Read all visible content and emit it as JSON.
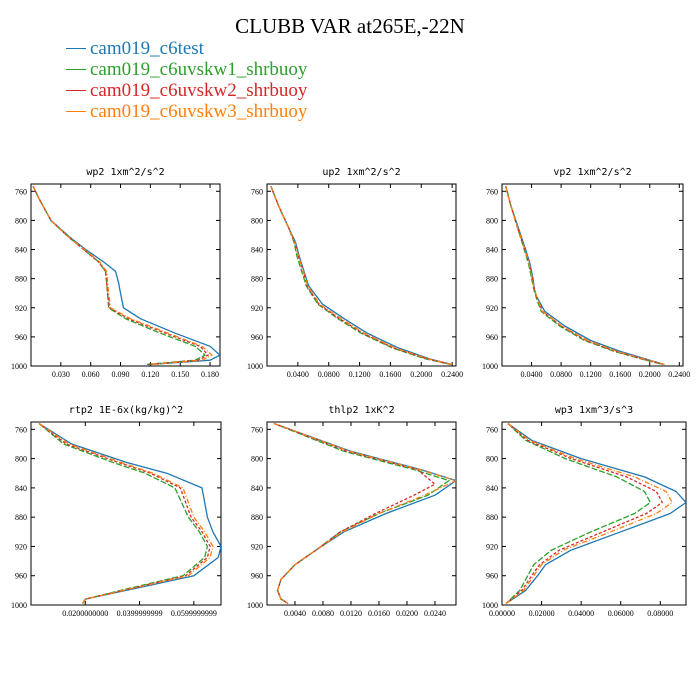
{
  "title": "CLUBB VAR at265E,-22N",
  "legend": [
    {
      "label": "cam019_c6test",
      "color": "#1f77b4"
    },
    {
      "label": "cam019_c6uvskw1_shrbuoy",
      "color": "#2ca02c"
    },
    {
      "label": "cam019_c6uvskw2_shrbuoy",
      "color": "#d62728"
    },
    {
      "label": "cam019_c6uvskw3_shrbuoy",
      "color": "#ff7f0e"
    }
  ],
  "chart_data": [
    {
      "type": "line",
      "title": "wp2  1xm^2/s^2",
      "xlim": [
        0,
        0.19
      ],
      "ylim": [
        1000,
        750
      ],
      "xticks": [
        "0.030",
        "0.060",
        "0.090",
        "0.120",
        "0.150",
        "0.180"
      ],
      "xtick_values": [
        0.03,
        0.06,
        0.09,
        0.12,
        0.15,
        0.18
      ],
      "yticks": [
        760,
        800,
        840,
        880,
        920,
        960,
        1000
      ],
      "grid": false,
      "series": [
        {
          "name": "cam019_c6test",
          "color": "#1f77b4",
          "dash": "none",
          "x": [
            0.002,
            0.008,
            0.02,
            0.038,
            0.055,
            0.073,
            0.085,
            0.088,
            0.09,
            0.093,
            0.11,
            0.145,
            0.18,
            0.19,
            0.18,
            0.12
          ],
          "y": [
            753,
            770,
            800,
            822,
            840,
            857,
            870,
            885,
            900,
            920,
            935,
            955,
            973,
            985,
            992,
            998
          ]
        },
        {
          "name": "cam019_c6uvskw1_shrbuoy",
          "color": "#2ca02c",
          "dash": "6,2",
          "x": [
            0.002,
            0.008,
            0.02,
            0.037,
            0.053,
            0.068,
            0.075,
            0.076,
            0.077,
            0.078,
            0.095,
            0.13,
            0.165,
            0.175,
            0.165,
            0.115
          ],
          "y": [
            753,
            770,
            800,
            822,
            840,
            857,
            870,
            885,
            900,
            920,
            935,
            955,
            973,
            985,
            992,
            998
          ]
        },
        {
          "name": "cam019_c6uvskw2_shrbuoy",
          "color": "#d62728",
          "dash": "3,2",
          "x": [
            0.002,
            0.008,
            0.02,
            0.037,
            0.053,
            0.068,
            0.075,
            0.076,
            0.077,
            0.079,
            0.098,
            0.135,
            0.17,
            0.178,
            0.168,
            0.118
          ],
          "y": [
            753,
            770,
            800,
            822,
            840,
            857,
            870,
            885,
            900,
            920,
            935,
            955,
            973,
            985,
            992,
            998
          ]
        },
        {
          "name": "cam019_c6uvskw3_shrbuoy",
          "color": "#ff7f0e",
          "dash": "5,2,1,2",
          "x": [
            0.002,
            0.008,
            0.02,
            0.037,
            0.054,
            0.069,
            0.076,
            0.077,
            0.078,
            0.08,
            0.1,
            0.138,
            0.172,
            0.182,
            0.172,
            0.12
          ],
          "y": [
            753,
            770,
            800,
            822,
            840,
            857,
            870,
            885,
            900,
            920,
            935,
            955,
            973,
            985,
            992,
            998
          ]
        }
      ]
    },
    {
      "type": "line",
      "title": "up2  1xm^2/s^2",
      "xlim": [
        0,
        0.245
      ],
      "ylim": [
        1000,
        750
      ],
      "xticks": [
        "0.0400",
        "0.0800",
        "0.1200",
        "0.1600",
        "0.2000",
        "0.2400"
      ],
      "xtick_values": [
        0.04,
        0.08,
        0.12,
        0.16,
        0.2,
        0.24
      ],
      "yticks": [
        760,
        800,
        840,
        880,
        920,
        960,
        1000
      ],
      "grid": false,
      "series": [
        {
          "name": "cam019_c6test",
          "color": "#1f77b4",
          "dash": "none",
          "x": [
            0.005,
            0.015,
            0.028,
            0.037,
            0.042,
            0.048,
            0.054,
            0.072,
            0.1,
            0.13,
            0.17,
            0.21,
            0.24
          ],
          "y": [
            753,
            780,
            810,
            830,
            850,
            870,
            890,
            915,
            935,
            955,
            975,
            990,
            998
          ]
        },
        {
          "name": "cam019_c6uvskw1_shrbuoy",
          "color": "#2ca02c",
          "dash": "6,2",
          "x": [
            0.005,
            0.015,
            0.028,
            0.035,
            0.039,
            0.045,
            0.051,
            0.066,
            0.092,
            0.122,
            0.162,
            0.205,
            0.238
          ],
          "y": [
            753,
            780,
            810,
            830,
            850,
            870,
            890,
            915,
            935,
            955,
            975,
            990,
            998
          ]
        },
        {
          "name": "cam019_c6uvskw2_shrbuoy",
          "color": "#d62728",
          "dash": "3,2",
          "x": [
            0.005,
            0.015,
            0.028,
            0.036,
            0.041,
            0.047,
            0.052,
            0.067,
            0.094,
            0.124,
            0.164,
            0.207,
            0.239
          ],
          "y": [
            753,
            780,
            810,
            830,
            850,
            870,
            890,
            915,
            935,
            955,
            975,
            990,
            998
          ]
        },
        {
          "name": "cam019_c6uvskw3_shrbuoy",
          "color": "#ff7f0e",
          "dash": "5,2,1,2",
          "x": [
            0.005,
            0.015,
            0.028,
            0.036,
            0.041,
            0.047,
            0.053,
            0.068,
            0.096,
            0.126,
            0.166,
            0.208,
            0.24
          ],
          "y": [
            753,
            780,
            810,
            830,
            850,
            870,
            890,
            915,
            935,
            955,
            975,
            990,
            998
          ]
        }
      ]
    },
    {
      "type": "line",
      "title": "vp2  1xm^2/s^2",
      "xlim": [
        0,
        0.245
      ],
      "ylim": [
        1000,
        750
      ],
      "xticks": [
        "0.0400",
        "0.0800",
        "0.1200",
        "0.1600",
        "0.2000",
        "0.2400"
      ],
      "xtick_values": [
        0.04,
        0.08,
        0.12,
        0.16,
        0.2,
        0.24
      ],
      "yticks": [
        760,
        800,
        840,
        880,
        920,
        960,
        1000
      ],
      "grid": false,
      "series": [
        {
          "name": "cam019_c6test",
          "color": "#1f77b4",
          "dash": "none",
          "x": [
            0.005,
            0.012,
            0.022,
            0.032,
            0.038,
            0.042,
            0.044,
            0.047,
            0.058,
            0.085,
            0.12,
            0.16,
            0.2,
            0.22
          ],
          "y": [
            753,
            780,
            810,
            840,
            860,
            880,
            895,
            905,
            925,
            945,
            965,
            980,
            992,
            998
          ]
        },
        {
          "name": "cam019_c6uvskw1_shrbuoy",
          "color": "#2ca02c",
          "dash": "6,2",
          "x": [
            0.005,
            0.012,
            0.021,
            0.03,
            0.036,
            0.04,
            0.043,
            0.046,
            0.053,
            0.078,
            0.112,
            0.152,
            0.195,
            0.218
          ],
          "y": [
            753,
            780,
            810,
            840,
            860,
            880,
            895,
            905,
            925,
            945,
            965,
            980,
            992,
            998
          ]
        },
        {
          "name": "cam019_c6uvskw2_shrbuoy",
          "color": "#d62728",
          "dash": "3,2",
          "x": [
            0.005,
            0.012,
            0.021,
            0.031,
            0.037,
            0.041,
            0.044,
            0.047,
            0.055,
            0.08,
            0.114,
            0.154,
            0.196,
            0.219
          ],
          "y": [
            753,
            780,
            810,
            840,
            860,
            880,
            895,
            905,
            925,
            945,
            965,
            980,
            992,
            998
          ]
        },
        {
          "name": "cam019_c6uvskw3_shrbuoy",
          "color": "#ff7f0e",
          "dash": "5,2,1,2",
          "x": [
            0.005,
            0.012,
            0.021,
            0.031,
            0.037,
            0.041,
            0.044,
            0.047,
            0.055,
            0.081,
            0.116,
            0.156,
            0.198,
            0.22
          ],
          "y": [
            753,
            780,
            810,
            840,
            860,
            880,
            895,
            905,
            925,
            945,
            965,
            980,
            992,
            998
          ]
        }
      ]
    },
    {
      "type": "line",
      "title": "rtp2  1E-6x(kg/kg)^2",
      "xlim": [
        0,
        0.07
      ],
      "ylim": [
        1000,
        750
      ],
      "xticks": [
        "0.0200000000",
        "0.0399999999",
        "0.0599999999"
      ],
      "xtick_values": [
        0.02,
        0.04,
        0.06
      ],
      "yticks": [
        760,
        800,
        840,
        880,
        920,
        960,
        1000
      ],
      "grid": false,
      "series": [
        {
          "name": "cam019_c6test",
          "color": "#1f77b4",
          "dash": "none",
          "x": [
            0.003,
            0.015,
            0.035,
            0.05,
            0.063,
            0.065,
            0.067,
            0.07,
            0.069,
            0.06,
            0.035,
            0.02,
            0.019
          ],
          "y": [
            752,
            780,
            805,
            820,
            840,
            880,
            900,
            920,
            935,
            960,
            980,
            992,
            998
          ]
        },
        {
          "name": "cam019_c6uvskw1_shrbuoy",
          "color": "#2ca02c",
          "dash": "6,2",
          "x": [
            0.003,
            0.012,
            0.03,
            0.042,
            0.053,
            0.058,
            0.062,
            0.065,
            0.064,
            0.056,
            0.033,
            0.02,
            0.019
          ],
          "y": [
            752,
            780,
            805,
            820,
            840,
            880,
            900,
            920,
            935,
            960,
            980,
            992,
            998
          ]
        },
        {
          "name": "cam019_c6uvskw2_shrbuoy",
          "color": "#d62728",
          "dash": "3,2",
          "x": [
            0.003,
            0.013,
            0.032,
            0.044,
            0.055,
            0.059,
            0.063,
            0.066,
            0.065,
            0.057,
            0.034,
            0.02,
            0.019
          ],
          "y": [
            752,
            780,
            805,
            820,
            840,
            880,
            900,
            920,
            935,
            960,
            980,
            992,
            998
          ]
        },
        {
          "name": "cam019_c6uvskw3_shrbuoy",
          "color": "#ff7f0e",
          "dash": "5,2,1,2",
          "x": [
            0.003,
            0.014,
            0.033,
            0.045,
            0.056,
            0.06,
            0.064,
            0.067,
            0.066,
            0.058,
            0.034,
            0.02,
            0.019
          ],
          "y": [
            752,
            780,
            805,
            820,
            840,
            880,
            900,
            920,
            935,
            960,
            980,
            992,
            998
          ]
        }
      ]
    },
    {
      "type": "line",
      "title": "thlp2  1xK^2",
      "xlim": [
        0,
        0.027
      ],
      "ylim": [
        1000,
        750
      ],
      "xticks": [
        "0.0040",
        "0.0080",
        "0.0120",
        "0.0160",
        "0.0200",
        "0.0240"
      ],
      "xtick_values": [
        0.004,
        0.008,
        0.012,
        0.016,
        0.02,
        0.024
      ],
      "yticks": [
        760,
        800,
        840,
        880,
        920,
        960,
        1000
      ],
      "grid": false,
      "series": [
        {
          "name": "cam019_c6test",
          "color": "#1f77b4",
          "dash": "none",
          "x": [
            0.001,
            0.012,
            0.022,
            0.027,
            0.024,
            0.017,
            0.011,
            0.007,
            0.004,
            0.002,
            0.0015,
            0.002,
            0.003
          ],
          "y": [
            752,
            790,
            815,
            830,
            850,
            875,
            900,
            925,
            945,
            965,
            980,
            992,
            998
          ]
        },
        {
          "name": "cam019_c6uvskw1_shrbuoy",
          "color": "#2ca02c",
          "dash": "6,2",
          "x": [
            0.001,
            0.011,
            0.021,
            0.026,
            0.023,
            0.016,
            0.0105,
            0.007,
            0.004,
            0.002,
            0.0015,
            0.002,
            0.003
          ],
          "y": [
            752,
            790,
            815,
            830,
            850,
            875,
            900,
            925,
            945,
            965,
            980,
            992,
            998
          ]
        },
        {
          "name": "cam019_c6uvskw2_shrbuoy",
          "color": "#d62728",
          "dash": "3,2",
          "x": [
            0.001,
            0.0115,
            0.0215,
            0.024,
            0.021,
            0.0155,
            0.0105,
            0.007,
            0.004,
            0.002,
            0.0015,
            0.002,
            0.003
          ],
          "y": [
            752,
            790,
            815,
            835,
            850,
            875,
            900,
            925,
            945,
            965,
            980,
            992,
            998
          ]
        },
        {
          "name": "cam019_c6uvskw3_shrbuoy",
          "color": "#ff7f0e",
          "dash": "5,2,1,2",
          "x": [
            0.001,
            0.0118,
            0.0218,
            0.027,
            0.0225,
            0.016,
            0.0108,
            0.007,
            0.004,
            0.002,
            0.0015,
            0.002,
            0.003
          ],
          "y": [
            752,
            790,
            815,
            830,
            850,
            875,
            900,
            925,
            945,
            965,
            980,
            992,
            998
          ]
        }
      ]
    },
    {
      "type": "line",
      "title": "wp3  1xm^3/s^3",
      "xlim": [
        0,
        0.093
      ],
      "ylim": [
        1000,
        750
      ],
      "xticks": [
        "0.00000",
        "0.02000",
        "0.04000",
        "0.06000",
        "0.08000"
      ],
      "xtick_values": [
        0,
        0.02,
        0.04,
        0.06,
        0.08
      ],
      "yticks": [
        760,
        800,
        840,
        880,
        920,
        960,
        1000
      ],
      "grid": false,
      "series": [
        {
          "name": "cam019_c6test",
          "color": "#1f77b4",
          "dash": "none",
          "x": [
            0.003,
            0.015,
            0.04,
            0.072,
            0.088,
            0.093,
            0.085,
            0.06,
            0.035,
            0.022,
            0.018,
            0.012,
            0.002
          ],
          "y": [
            752,
            775,
            800,
            825,
            845,
            860,
            875,
            900,
            925,
            945,
            960,
            980,
            998
          ]
        },
        {
          "name": "cam019_c6uvskw1_shrbuoy",
          "color": "#2ca02c",
          "dash": "6,2",
          "x": [
            0.003,
            0.012,
            0.032,
            0.058,
            0.072,
            0.075,
            0.067,
            0.045,
            0.025,
            0.016,
            0.013,
            0.009,
            0.002
          ],
          "y": [
            752,
            775,
            800,
            825,
            845,
            860,
            875,
            900,
            925,
            945,
            960,
            980,
            998
          ]
        },
        {
          "name": "cam019_c6uvskw2_shrbuoy",
          "color": "#d62728",
          "dash": "3,2",
          "x": [
            0.003,
            0.013,
            0.035,
            0.063,
            0.078,
            0.081,
            0.073,
            0.051,
            0.029,
            0.019,
            0.015,
            0.01,
            0.002
          ],
          "y": [
            752,
            775,
            800,
            825,
            845,
            860,
            875,
            900,
            925,
            945,
            960,
            980,
            998
          ]
        },
        {
          "name": "cam019_c6uvskw3_shrbuoy",
          "color": "#ff7f0e",
          "dash": "5,2,1,2",
          "x": [
            0.003,
            0.014,
            0.037,
            0.067,
            0.083,
            0.086,
            0.078,
            0.055,
            0.031,
            0.02,
            0.016,
            0.011,
            0.002
          ],
          "y": [
            752,
            775,
            800,
            825,
            845,
            860,
            875,
            900,
            925,
            945,
            960,
            980,
            998
          ]
        }
      ]
    }
  ]
}
